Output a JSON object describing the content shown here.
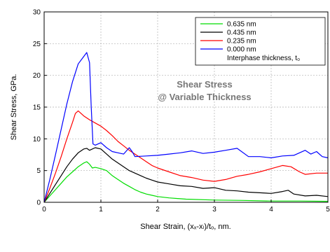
{
  "chart_data": {
    "type": "line",
    "title": "",
    "annotation_lines": [
      "Shear Stress",
      "@ Variable Thickness"
    ],
    "xlabel": "Shear Strain, (xₓ-xₗ)/tₒ, nm.",
    "ylabel": "Shear Stress, GPa.",
    "xlim": [
      0,
      5
    ],
    "ylim": [
      0,
      30
    ],
    "x_ticks": [
      "0",
      "1",
      "2",
      "3",
      "4",
      "5"
    ],
    "y_ticks": [
      "0",
      "5",
      "10",
      "15",
      "20",
      "25",
      "30"
    ],
    "grid": true,
    "legend_position": "top-right",
    "legend_title": "Interphase thickness, t₀",
    "series": [
      {
        "name": "0.635 nm",
        "color": "#00dd00",
        "points": [
          [
            0,
            0
          ],
          [
            0.1,
            1.0
          ],
          [
            0.2,
            2.0
          ],
          [
            0.3,
            3.0
          ],
          [
            0.4,
            4.0
          ],
          [
            0.5,
            4.8
          ],
          [
            0.6,
            5.6
          ],
          [
            0.7,
            6.2
          ],
          [
            0.75,
            6.4
          ],
          [
            0.8,
            6.0
          ],
          [
            0.85,
            5.4
          ],
          [
            0.9,
            5.5
          ],
          [
            1.0,
            5.3
          ],
          [
            1.1,
            5.0
          ],
          [
            1.2,
            4.2
          ],
          [
            1.3,
            3.6
          ],
          [
            1.4,
            3.0
          ],
          [
            1.5,
            2.5
          ],
          [
            1.6,
            2.0
          ],
          [
            1.7,
            1.6
          ],
          [
            1.8,
            1.3
          ],
          [
            1.9,
            1.1
          ],
          [
            2.0,
            0.9
          ],
          [
            2.2,
            0.7
          ],
          [
            2.5,
            0.5
          ],
          [
            3.0,
            0.35
          ],
          [
            3.5,
            0.3
          ],
          [
            4.0,
            0.2
          ],
          [
            4.5,
            0.2
          ],
          [
            5.0,
            0.15
          ]
        ]
      },
      {
        "name": "0.435 nm",
        "color": "#000000",
        "points": [
          [
            0,
            0
          ],
          [
            0.1,
            1.4
          ],
          [
            0.2,
            2.8
          ],
          [
            0.3,
            4.2
          ],
          [
            0.4,
            5.6
          ],
          [
            0.5,
            6.8
          ],
          [
            0.6,
            7.8
          ],
          [
            0.7,
            8.4
          ],
          [
            0.75,
            8.5
          ],
          [
            0.8,
            8.2
          ],
          [
            0.9,
            8.6
          ],
          [
            1.0,
            8.4
          ],
          [
            1.1,
            7.6
          ],
          [
            1.2,
            6.8
          ],
          [
            1.3,
            6.2
          ],
          [
            1.4,
            5.6
          ],
          [
            1.5,
            5.0
          ],
          [
            1.6,
            4.6
          ],
          [
            1.7,
            4.2
          ],
          [
            1.8,
            3.8
          ],
          [
            1.9,
            3.5
          ],
          [
            2.0,
            3.2
          ],
          [
            2.2,
            2.9
          ],
          [
            2.4,
            2.6
          ],
          [
            2.6,
            2.5
          ],
          [
            2.8,
            2.2
          ],
          [
            3.0,
            2.3
          ],
          [
            3.2,
            1.9
          ],
          [
            3.4,
            1.8
          ],
          [
            3.6,
            1.6
          ],
          [
            3.8,
            1.5
          ],
          [
            4.0,
            1.4
          ],
          [
            4.2,
            1.7
          ],
          [
            4.3,
            1.9
          ],
          [
            4.4,
            1.3
          ],
          [
            4.6,
            1.0
          ],
          [
            4.8,
            1.1
          ],
          [
            5.0,
            0.9
          ]
        ]
      },
      {
        "name": "0.235 nm",
        "color": "#ff0000",
        "points": [
          [
            0,
            0
          ],
          [
            0.1,
            2.2
          ],
          [
            0.2,
            4.6
          ],
          [
            0.3,
            7.2
          ],
          [
            0.4,
            10.0
          ],
          [
            0.5,
            12.6
          ],
          [
            0.55,
            14.0
          ],
          [
            0.6,
            14.4
          ],
          [
            0.65,
            14.0
          ],
          [
            0.7,
            13.6
          ],
          [
            0.8,
            13.0
          ],
          [
            0.9,
            12.5
          ],
          [
            1.0,
            12.0
          ],
          [
            1.1,
            11.3
          ],
          [
            1.2,
            10.5
          ],
          [
            1.3,
            9.6
          ],
          [
            1.4,
            8.9
          ],
          [
            1.5,
            8.2
          ],
          [
            1.6,
            7.6
          ],
          [
            1.7,
            7.0
          ],
          [
            1.8,
            6.4
          ],
          [
            1.9,
            5.8
          ],
          [
            2.0,
            5.4
          ],
          [
            2.2,
            4.8
          ],
          [
            2.4,
            4.2
          ],
          [
            2.6,
            3.9
          ],
          [
            2.8,
            3.5
          ],
          [
            3.0,
            3.3
          ],
          [
            3.2,
            3.6
          ],
          [
            3.4,
            4.1
          ],
          [
            3.6,
            4.4
          ],
          [
            3.8,
            4.8
          ],
          [
            4.0,
            5.3
          ],
          [
            4.2,
            5.8
          ],
          [
            4.35,
            5.6
          ],
          [
            4.5,
            4.8
          ],
          [
            4.6,
            4.4
          ],
          [
            4.8,
            4.6
          ],
          [
            5.0,
            4.6
          ]
        ]
      },
      {
        "name": "0.000 nm",
        "color": "#0000ff",
        "points": [
          [
            0,
            0
          ],
          [
            0.1,
            3.6
          ],
          [
            0.2,
            7.5
          ],
          [
            0.3,
            11.5
          ],
          [
            0.4,
            15.5
          ],
          [
            0.5,
            19.0
          ],
          [
            0.6,
            21.8
          ],
          [
            0.7,
            23.0
          ],
          [
            0.75,
            23.6
          ],
          [
            0.8,
            22.0
          ],
          [
            0.83,
            15.0
          ],
          [
            0.86,
            9.2
          ],
          [
            0.9,
            9.0
          ],
          [
            1.0,
            9.4
          ],
          [
            1.1,
            8.6
          ],
          [
            1.2,
            8.0
          ],
          [
            1.3,
            7.8
          ],
          [
            1.4,
            7.6
          ],
          [
            1.5,
            8.6
          ],
          [
            1.55,
            8.0
          ],
          [
            1.6,
            7.2
          ],
          [
            1.8,
            7.3
          ],
          [
            2.0,
            7.4
          ],
          [
            2.2,
            7.6
          ],
          [
            2.4,
            7.8
          ],
          [
            2.6,
            8.1
          ],
          [
            2.8,
            7.7
          ],
          [
            3.0,
            7.9
          ],
          [
            3.2,
            8.2
          ],
          [
            3.4,
            8.5
          ],
          [
            3.6,
            7.2
          ],
          [
            3.8,
            7.2
          ],
          [
            4.0,
            7.0
          ],
          [
            4.2,
            7.3
          ],
          [
            4.4,
            7.4
          ],
          [
            4.6,
            8.2
          ],
          [
            4.7,
            7.6
          ],
          [
            4.8,
            8.0
          ],
          [
            4.9,
            7.2
          ],
          [
            5.0,
            7.0
          ]
        ]
      }
    ]
  }
}
